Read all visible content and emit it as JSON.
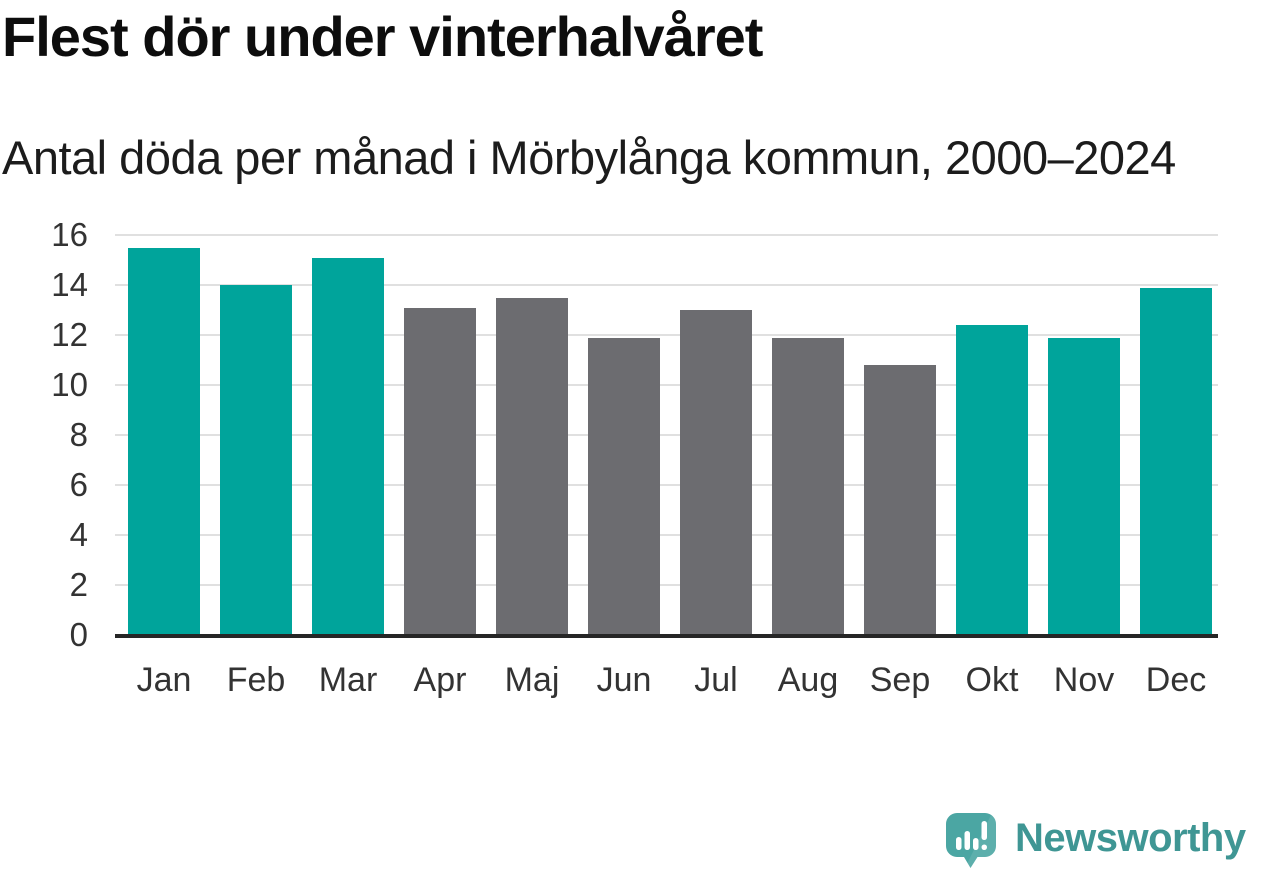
{
  "header": {
    "title": "Flest dör under vinterhalvåret",
    "subtitle": "Antal döda per månad i Mörbylånga kommun, 2000–2024"
  },
  "branding": {
    "logo_text": "Newsworthy",
    "logo_icon": "newsworthy-bubble-bar-chart-icon"
  },
  "colors": {
    "winter_bar": "#00a49b",
    "summer_bar": "#6c6c70",
    "gridline": "#e0e0e0",
    "axis_line": "#262626",
    "axis_label": "#333333",
    "title_text": "#0d0d0d",
    "subtitle_text": "#1c1c1c",
    "logo_teal": "#3f9694",
    "logo_icon_teal": "#4ba6a3"
  },
  "chart_data": {
    "type": "bar",
    "title": "Flest dör under vinterhalvåret",
    "subtitle": "Antal döda per månad i Mörbylånga kommun, 2000–2024",
    "categories": [
      "Jan",
      "Feb",
      "Mar",
      "Apr",
      "Maj",
      "Jun",
      "Jul",
      "Aug",
      "Sep",
      "Okt",
      "Nov",
      "Dec"
    ],
    "values": [
      15.5,
      14.0,
      15.1,
      13.1,
      13.5,
      11.9,
      13.0,
      11.9,
      10.8,
      12.4,
      11.9,
      13.9
    ],
    "bar_seasons": [
      "winter",
      "winter",
      "winter",
      "summer",
      "summer",
      "summer",
      "summer",
      "summer",
      "summer",
      "winter",
      "winter",
      "winter"
    ],
    "xlabel": "",
    "ylabel": "",
    "ylim": [
      0,
      16
    ],
    "yticks": [
      0,
      2,
      4,
      6,
      8,
      10,
      12,
      14,
      16
    ],
    "grid": "horizontal",
    "legend": "none"
  }
}
